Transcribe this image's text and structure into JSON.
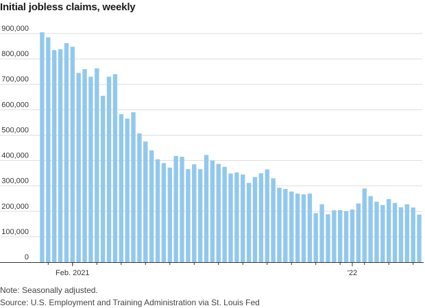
{
  "header": {
    "title": "Initial jobless claims, weekly"
  },
  "footer": {
    "note": "Note: Seasonally adjusted.",
    "source": "Source: U.S. Employment and Training Administration via St. Louis Fed"
  },
  "colors": {
    "bar": "#92c8ee",
    "grid": "#dddddd",
    "axis": "#333333"
  },
  "chart_data": {
    "type": "bar",
    "title": "Initial jobless claims, weekly",
    "ylim": [
      0,
      900000
    ],
    "yticks": [
      {
        "value": 0,
        "label": "0"
      },
      {
        "value": 100000,
        "label": "100,000"
      },
      {
        "value": 200000,
        "label": "200,000"
      },
      {
        "value": 300000,
        "label": "300,000"
      },
      {
        "value": 400000,
        "label": "400,000"
      },
      {
        "value": 500000,
        "label": "500,000"
      },
      {
        "value": 600000,
        "label": "600,000"
      },
      {
        "value": 700000,
        "label": "700,000"
      },
      {
        "value": 800000,
        "label": "800,000"
      },
      {
        "value": 900000,
        "label": "900,000"
      }
    ],
    "xtick_labels": [
      {
        "index": 5,
        "label": "Feb. 2021"
      },
      {
        "index": 51,
        "label": "'22"
      }
    ],
    "grid": true,
    "values": [
      905000,
      885000,
      835000,
      838000,
      862000,
      848000,
      745000,
      760000,
      730000,
      763000,
      655000,
      730000,
      740000,
      583000,
      565000,
      590000,
      507000,
      475000,
      440000,
      405000,
      390000,
      372000,
      418000,
      415000,
      366000,
      385000,
      366000,
      422000,
      400000,
      387000,
      375000,
      349000,
      353000,
      345000,
      312000,
      335000,
      350000,
      365000,
      330000,
      293000,
      288000,
      278000,
      270000,
      267000,
      270000,
      193000,
      228000,
      188000,
      204000,
      205000,
      201000,
      207000,
      231000,
      290000,
      260000,
      238000,
      225000,
      248000,
      233000,
      216000,
      228000,
      215000,
      187000
    ]
  }
}
